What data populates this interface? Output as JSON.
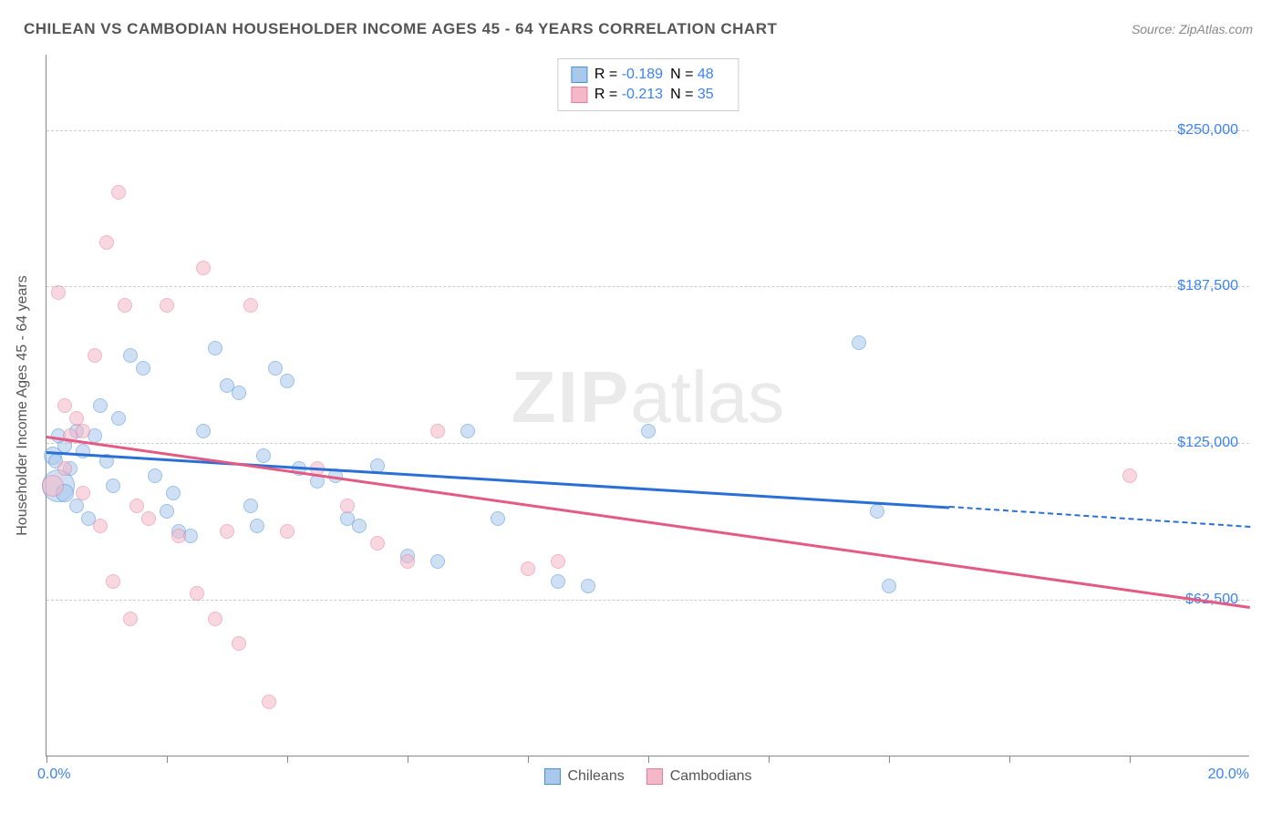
{
  "title": "CHILEAN VS CAMBODIAN HOUSEHOLDER INCOME AGES 45 - 64 YEARS CORRELATION CHART",
  "source": "Source: ZipAtlas.com",
  "watermark": {
    "bold": "ZIP",
    "light": "atlas"
  },
  "yaxis_title": "Householder Income Ages 45 - 64 years",
  "chart": {
    "type": "scatter",
    "background_color": "#ffffff",
    "grid_color": "#cccccc",
    "xlim": [
      0,
      20
    ],
    "ylim": [
      0,
      280000
    ],
    "xtick_positions": [
      0,
      2,
      4,
      6,
      8,
      10,
      12,
      14,
      16,
      18
    ],
    "xlabel_min": "0.0%",
    "xlabel_max": "20.0%",
    "ytick_labels": [
      {
        "value": 62500,
        "label": "$62,500"
      },
      {
        "value": 125000,
        "label": "$125,000"
      },
      {
        "value": 187500,
        "label": "$187,500"
      },
      {
        "value": 250000,
        "label": "$250,000"
      }
    ],
    "series": [
      {
        "name": "Chileans",
        "fill_color": "#a8c8ec",
        "stroke_color": "#4a90d9",
        "line_color": "#2a6fd6",
        "fill_opacity": 0.55,
        "R": "-0.189",
        "N": "48",
        "trend": {
          "x1": 0,
          "y1": 122000,
          "x2": 15,
          "y2": 100000,
          "dash_to_x": 20,
          "dash_to_y": 92000
        },
        "points": [
          {
            "x": 0.1,
            "y": 120000,
            "r": 10
          },
          {
            "x": 0.2,
            "y": 108000,
            "r": 18
          },
          {
            "x": 0.15,
            "y": 118000,
            "r": 8
          },
          {
            "x": 0.3,
            "y": 124000,
            "r": 8
          },
          {
            "x": 0.4,
            "y": 115000,
            "r": 8
          },
          {
            "x": 0.5,
            "y": 130000,
            "r": 8
          },
          {
            "x": 0.6,
            "y": 122000,
            "r": 8
          },
          {
            "x": 0.8,
            "y": 128000,
            "r": 8
          },
          {
            "x": 1.0,
            "y": 118000,
            "r": 8
          },
          {
            "x": 1.2,
            "y": 135000,
            "r": 8
          },
          {
            "x": 1.4,
            "y": 160000,
            "r": 8
          },
          {
            "x": 1.6,
            "y": 155000,
            "r": 8
          },
          {
            "x": 1.8,
            "y": 112000,
            "r": 8
          },
          {
            "x": 2.0,
            "y": 98000,
            "r": 8
          },
          {
            "x": 2.2,
            "y": 90000,
            "r": 8
          },
          {
            "x": 2.4,
            "y": 88000,
            "r": 8
          },
          {
            "x": 2.6,
            "y": 130000,
            "r": 8
          },
          {
            "x": 2.8,
            "y": 163000,
            "r": 8
          },
          {
            "x": 3.0,
            "y": 148000,
            "r": 8
          },
          {
            "x": 3.2,
            "y": 145000,
            "r": 8
          },
          {
            "x": 3.4,
            "y": 100000,
            "r": 8
          },
          {
            "x": 3.5,
            "y": 92000,
            "r": 8
          },
          {
            "x": 3.8,
            "y": 155000,
            "r": 8
          },
          {
            "x": 4.0,
            "y": 150000,
            "r": 8
          },
          {
            "x": 4.2,
            "y": 115000,
            "r": 8
          },
          {
            "x": 4.5,
            "y": 110000,
            "r": 8
          },
          {
            "x": 4.8,
            "y": 112000,
            "r": 8
          },
          {
            "x": 5.0,
            "y": 95000,
            "r": 8
          },
          {
            "x": 5.2,
            "y": 92000,
            "r": 8
          },
          {
            "x": 5.5,
            "y": 116000,
            "r": 8
          },
          {
            "x": 6.0,
            "y": 80000,
            "r": 8
          },
          {
            "x": 6.5,
            "y": 78000,
            "r": 8
          },
          {
            "x": 7.0,
            "y": 130000,
            "r": 8
          },
          {
            "x": 7.5,
            "y": 95000,
            "r": 8
          },
          {
            "x": 8.5,
            "y": 70000,
            "r": 8
          },
          {
            "x": 9.0,
            "y": 68000,
            "r": 8
          },
          {
            "x": 10.0,
            "y": 130000,
            "r": 8
          },
          {
            "x": 13.5,
            "y": 165000,
            "r": 8
          },
          {
            "x": 13.8,
            "y": 98000,
            "r": 8
          },
          {
            "x": 14.0,
            "y": 68000,
            "r": 8
          },
          {
            "x": 0.3,
            "y": 105000,
            "r": 10
          },
          {
            "x": 0.5,
            "y": 100000,
            "r": 8
          },
          {
            "x": 0.7,
            "y": 95000,
            "r": 8
          },
          {
            "x": 1.1,
            "y": 108000,
            "r": 8
          },
          {
            "x": 2.1,
            "y": 105000,
            "r": 8
          },
          {
            "x": 0.2,
            "y": 128000,
            "r": 8
          },
          {
            "x": 0.9,
            "y": 140000,
            "r": 8
          },
          {
            "x": 3.6,
            "y": 120000,
            "r": 8
          }
        ]
      },
      {
        "name": "Cambodians",
        "fill_color": "#f4b8c8",
        "stroke_color": "#e87a9a",
        "line_color": "#e35a82",
        "fill_opacity": 0.55,
        "R": "-0.213",
        "N": "35",
        "trend": {
          "x1": 0,
          "y1": 128000,
          "x2": 20,
          "y2": 60000
        },
        "points": [
          {
            "x": 0.2,
            "y": 185000,
            "r": 8
          },
          {
            "x": 0.3,
            "y": 140000,
            "r": 8
          },
          {
            "x": 0.4,
            "y": 128000,
            "r": 8
          },
          {
            "x": 0.5,
            "y": 135000,
            "r": 8
          },
          {
            "x": 0.6,
            "y": 130000,
            "r": 8
          },
          {
            "x": 0.8,
            "y": 160000,
            "r": 8
          },
          {
            "x": 1.0,
            "y": 205000,
            "r": 8
          },
          {
            "x": 1.2,
            "y": 225000,
            "r": 8
          },
          {
            "x": 1.3,
            "y": 180000,
            "r": 8
          },
          {
            "x": 1.5,
            "y": 100000,
            "r": 8
          },
          {
            "x": 1.7,
            "y": 95000,
            "r": 8
          },
          {
            "x": 2.0,
            "y": 180000,
            "r": 8
          },
          {
            "x": 2.2,
            "y": 88000,
            "r": 8
          },
          {
            "x": 2.5,
            "y": 65000,
            "r": 8
          },
          {
            "x": 2.6,
            "y": 195000,
            "r": 8
          },
          {
            "x": 2.8,
            "y": 55000,
            "r": 8
          },
          {
            "x": 3.0,
            "y": 90000,
            "r": 8
          },
          {
            "x": 3.2,
            "y": 45000,
            "r": 8
          },
          {
            "x": 3.4,
            "y": 180000,
            "r": 8
          },
          {
            "x": 3.7,
            "y": 22000,
            "r": 8
          },
          {
            "x": 4.0,
            "y": 90000,
            "r": 8
          },
          {
            "x": 4.5,
            "y": 115000,
            "r": 8
          },
          {
            "x": 5.0,
            "y": 100000,
            "r": 8
          },
          {
            "x": 5.5,
            "y": 85000,
            "r": 8
          },
          {
            "x": 6.0,
            "y": 78000,
            "r": 8
          },
          {
            "x": 6.5,
            "y": 130000,
            "r": 8
          },
          {
            "x": 8.0,
            "y": 75000,
            "r": 8
          },
          {
            "x": 8.5,
            "y": 78000,
            "r": 8
          },
          {
            "x": 18.0,
            "y": 112000,
            "r": 8
          },
          {
            "x": 0.3,
            "y": 115000,
            "r": 8
          },
          {
            "x": 0.6,
            "y": 105000,
            "r": 8
          },
          {
            "x": 0.9,
            "y": 92000,
            "r": 8
          },
          {
            "x": 1.1,
            "y": 70000,
            "r": 8
          },
          {
            "x": 1.4,
            "y": 55000,
            "r": 8
          },
          {
            "x": 0.1,
            "y": 108000,
            "r": 12
          }
        ]
      }
    ]
  }
}
